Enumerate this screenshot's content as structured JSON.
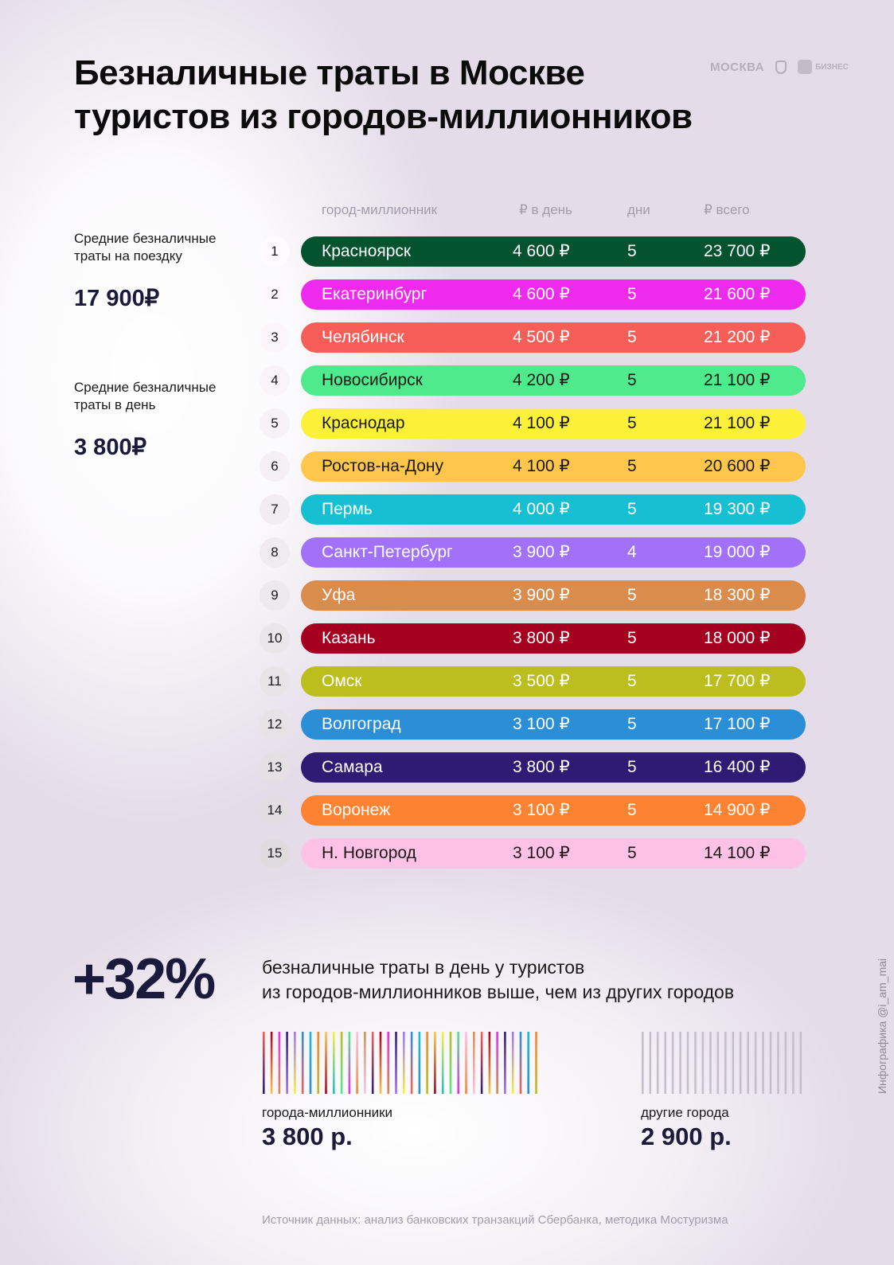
{
  "title_lines": [
    "Безналичные траты в Москве",
    "туристов из городов-миллионников"
  ],
  "logos": {
    "moskva": "МОСКВА",
    "biz": "БИЗНЕС"
  },
  "summary": [
    {
      "label": "Средние безналичные траты на поездку",
      "value": "17 900₽"
    },
    {
      "label": "Средние безналичные траты в день",
      "value": "3 800₽"
    }
  ],
  "chart_data": {
    "type": "table",
    "columns": [
      "город-миллионник",
      "₽ в день",
      "дни",
      "₽ всего"
    ],
    "rows": [
      {
        "rank": "1",
        "city": "Красноярск",
        "per_day": "4 600 ₽",
        "days": "5",
        "total": "23 700 ₽",
        "color": "#02532e",
        "text": "#ffffff"
      },
      {
        "rank": "2",
        "city": "Екатеринбург",
        "per_day": "4 600 ₽",
        "days": "5",
        "total": "21 600 ₽",
        "color": "#ee2aee",
        "text": "#ffffff"
      },
      {
        "rank": "3",
        "city": "Челябинск",
        "per_day": "4 500 ₽",
        "days": "5",
        "total": "21 200 ₽",
        "color": "#f85e58",
        "text": "#ffffff"
      },
      {
        "rank": "4",
        "city": "Новосибирск",
        "per_day": "4 200 ₽",
        "days": "5",
        "total": "21 100 ₽",
        "color": "#4eea8c",
        "text": "#1a1a1a"
      },
      {
        "rank": "5",
        "city": "Краснодар",
        "per_day": "4 100 ₽",
        "days": "5",
        "total": "21 100 ₽",
        "color": "#fcf138",
        "text": "#1a1a1a"
      },
      {
        "rank": "6",
        "city": "Ростов-на-Дону",
        "per_day": "4 100 ₽",
        "days": "5",
        "total": "20 600 ₽",
        "color": "#fec64a",
        "text": "#1a1a1a"
      },
      {
        "rank": "7",
        "city": "Пермь",
        "per_day": "4 000 ₽",
        "days": "5",
        "total": "19 300 ₽",
        "color": "#17bfd2",
        "text": "#ffffff"
      },
      {
        "rank": "8",
        "city": "Санкт-Петербург",
        "per_day": "3 900 ₽",
        "days": "4",
        "total": "19 000 ₽",
        "color": "#a271fa",
        "text": "#ffffff"
      },
      {
        "rank": "9",
        "city": "Уфа",
        "per_day": "3 900 ₽",
        "days": "5",
        "total": "18 300 ₽",
        "color": "#da8c4c",
        "text": "#ffffff"
      },
      {
        "rank": "10",
        "city": "Казань",
        "per_day": "3 800 ₽",
        "days": "5",
        "total": "18 000 ₽",
        "color": "#a60021",
        "text": "#ffffff"
      },
      {
        "rank": "11",
        "city": "Омск",
        "per_day": "3 500 ₽",
        "days": "5",
        "total": "17 700 ₽",
        "color": "#bcbe1e",
        "text": "#ffffff"
      },
      {
        "rank": "12",
        "city": "Волгоград",
        "per_day": "3 100 ₽",
        "days": "5",
        "total": "17 100 ₽",
        "color": "#2a8fd7",
        "text": "#ffffff"
      },
      {
        "rank": "13",
        "city": "Самара",
        "per_day": "3 800 ₽",
        "days": "5",
        "total": "16 400 ₽",
        "color": "#2f1b73",
        "text": "#ffffff"
      },
      {
        "rank": "14",
        "city": "Воронеж",
        "per_day": "3 100 ₽",
        "days": "5",
        "total": "14 900 ₽",
        "color": "#fd8231",
        "text": "#ffffff"
      },
      {
        "rank": "15",
        "city": "Н. Новгород",
        "per_day": "3 100 ₽",
        "days": "5",
        "total": "14 100 ₽",
        "color": "#ffc1e6",
        "text": "#1a1a1a"
      }
    ]
  },
  "comparison": {
    "percent": "+32%",
    "description_lines": [
      "безналичные траты в день у туристов",
      "из городов-миллионников выше, чем из других городов"
    ],
    "groups": [
      {
        "label": "города-миллионники",
        "value": "3 800 р.",
        "amount": 3800
      },
      {
        "label": "другие города",
        "value": "2 900 р.",
        "amount": 2900
      }
    ]
  },
  "source": "Источник данных: анализ банковских транзакций Сбербанка, методика Мостуризма",
  "credit": "Инфографика @i_am_mai"
}
